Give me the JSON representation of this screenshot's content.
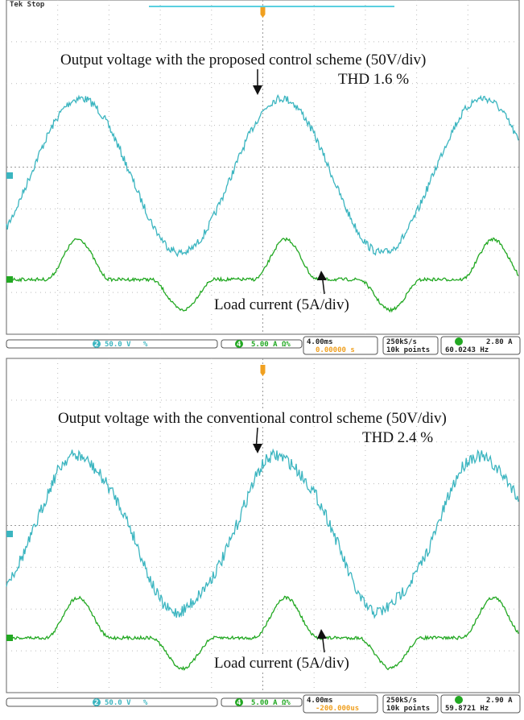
{
  "panels": [
    {
      "header": "Tek Stop",
      "voltage_label": "Output voltage with the proposed control scheme (50V/div)",
      "thd": "THD 1.6 %",
      "current_label": "Load current (5A/div)",
      "status": {
        "ch2_badge": "2",
        "ch2_scale": "50.0 V",
        "ch2_coupling": "%",
        "ch4_badge": "4",
        "ch4_scale": "5.00 A",
        "ch4_coupling": "Ω%",
        "timebase": "4.00ms",
        "position": "0.00000 s",
        "rate": "250kS/s",
        "points": "10k points",
        "trigger": "2.80 A",
        "frequency": "60.0243 Hz"
      }
    },
    {
      "header": null,
      "voltage_label": "Output voltage with the conventional control scheme (50V/div)",
      "thd": "THD 2.4 %",
      "current_label": "Load current (5A/div)",
      "status": {
        "ch2_badge": "2",
        "ch2_scale": "50.0 V",
        "ch2_coupling": "%",
        "ch4_badge": "4",
        "ch4_scale": "5.00 A",
        "ch4_coupling": "Ω%",
        "timebase": "4.00ms",
        "position": "-200.000us",
        "rate": "250kS/s",
        "points": "10k points",
        "trigger": "2.90 A",
        "frequency": "59.8721 Hz"
      }
    }
  ]
}
